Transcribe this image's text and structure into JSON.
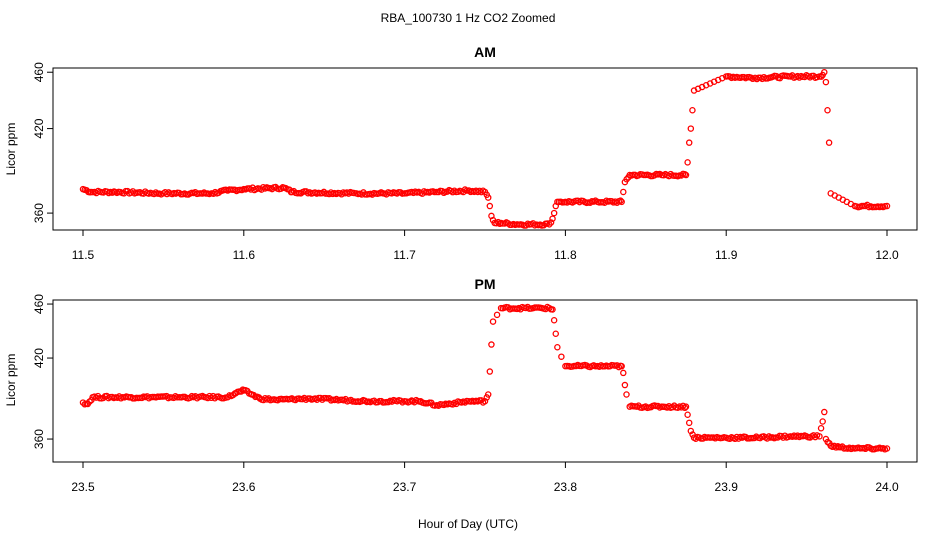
{
  "title": "RBA_100730  1 Hz CO2 Zoomed",
  "xlabel": "Hour of Day (UTC)",
  "colors": {
    "points": "#ff0000",
    "axes": "#000000",
    "background": "#ffffff"
  },
  "chart_data": [
    {
      "type": "scatter",
      "title": "AM",
      "ylabel": "Licor ppm",
      "xlim": [
        11.5,
        12.0
      ],
      "ylim": [
        348,
        463
      ],
      "xticks": [
        "11.5",
        "11.6",
        "11.7",
        "11.8",
        "11.9",
        "12.0"
      ],
      "yticks": [
        "360",
        "420",
        "460"
      ],
      "x": [
        11.5,
        11.505,
        11.52,
        11.55,
        11.58,
        11.59,
        11.6,
        11.625,
        11.63,
        11.67,
        11.7,
        11.72,
        11.74,
        11.75,
        11.752,
        11.753,
        11.754,
        11.755,
        11.756,
        11.76,
        11.77,
        11.79,
        11.792,
        11.793,
        11.794,
        11.795,
        11.796,
        11.8,
        11.82,
        11.835,
        11.836,
        11.837,
        11.84,
        11.86,
        11.875,
        11.876,
        11.877,
        11.878,
        11.879,
        11.88,
        11.9,
        11.918,
        11.94,
        11.958,
        11.96,
        11.961,
        11.962,
        11.963,
        11.964,
        11.965,
        11.98,
        12.0
      ],
      "y": [
        377,
        375,
        375,
        374,
        374,
        376,
        377,
        378,
        375,
        374,
        374,
        375,
        376,
        375,
        371,
        365,
        358,
        355,
        353,
        353,
        352,
        352,
        356,
        360,
        365,
        368,
        368,
        368,
        368,
        368,
        375,
        382,
        387,
        387,
        387,
        396,
        410,
        420,
        433,
        447,
        457,
        456,
        457,
        457,
        458,
        460,
        453,
        433,
        410,
        374,
        365,
        365
      ],
      "series": [
        {
          "values": "y"
        }
      ]
    },
    {
      "type": "scatter",
      "title": "PM",
      "ylabel": "Licor ppm",
      "xlim": [
        23.5,
        24.0
      ],
      "ylim": [
        343,
        463
      ],
      "xticks": [
        "23.5",
        "23.6",
        "23.7",
        "23.8",
        "23.9",
        "24.0"
      ],
      "yticks": [
        "360",
        "420",
        "460"
      ],
      "x": [
        23.5,
        23.503,
        23.506,
        23.53,
        23.56,
        23.59,
        23.595,
        23.6,
        23.605,
        23.61,
        23.62,
        23.64,
        23.66,
        23.68,
        23.7,
        23.705,
        23.71,
        23.72,
        23.74,
        23.75,
        23.752,
        23.753,
        23.754,
        23.755,
        23.76,
        23.78,
        23.79,
        23.792,
        23.793,
        23.794,
        23.795,
        23.8,
        23.82,
        23.835,
        23.836,
        23.837,
        23.838,
        23.84,
        23.86,
        23.875,
        23.876,
        23.877,
        23.878,
        23.88,
        23.9,
        23.92,
        23.94,
        23.958,
        23.959,
        23.96,
        23.961,
        23.962,
        23.965,
        23.97,
        23.98,
        24.0
      ],
      "y": [
        387,
        386,
        391,
        391,
        391,
        391,
        394,
        396,
        393,
        390,
        389,
        390,
        389,
        388,
        388,
        388,
        388,
        385,
        388,
        388,
        393,
        410,
        430,
        447,
        457,
        457,
        457,
        456,
        448,
        438,
        428,
        414,
        414,
        414,
        409,
        400,
        393,
        384,
        384,
        384,
        378,
        372,
        366,
        361,
        361,
        361,
        362,
        362,
        368,
        373,
        380,
        360,
        355,
        354,
        353,
        353
      ],
      "series": [
        {
          "values": "y"
        }
      ]
    }
  ]
}
